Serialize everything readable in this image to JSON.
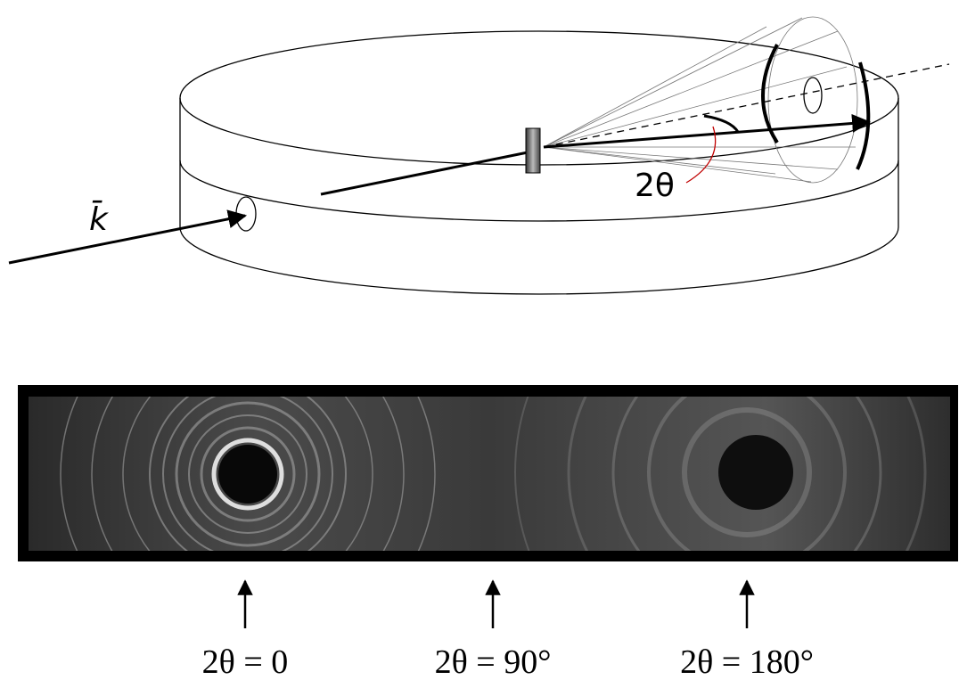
{
  "diagram": {
    "wave_vector_label": "k̄",
    "angle_label": "2θ"
  },
  "film": {
    "positions": [
      "2θ = 0",
      "2θ = 90°",
      "2θ = 180°"
    ]
  }
}
